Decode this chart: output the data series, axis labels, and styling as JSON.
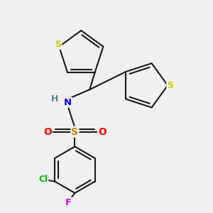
{
  "background_color": "#f0f0f0",
  "bond_color": "#1a1a1a",
  "sulfur_color": "#cccc00",
  "nitrogen_color": "#0000ff",
  "oxygen_color": "#ff0000",
  "chlorine_color": "#00bb00",
  "fluorine_color": "#dd00dd",
  "hydrogen_color": "#558888",
  "lw": 1.5,
  "xlim": [
    0,
    10
  ],
  "ylim": [
    0,
    10
  ]
}
